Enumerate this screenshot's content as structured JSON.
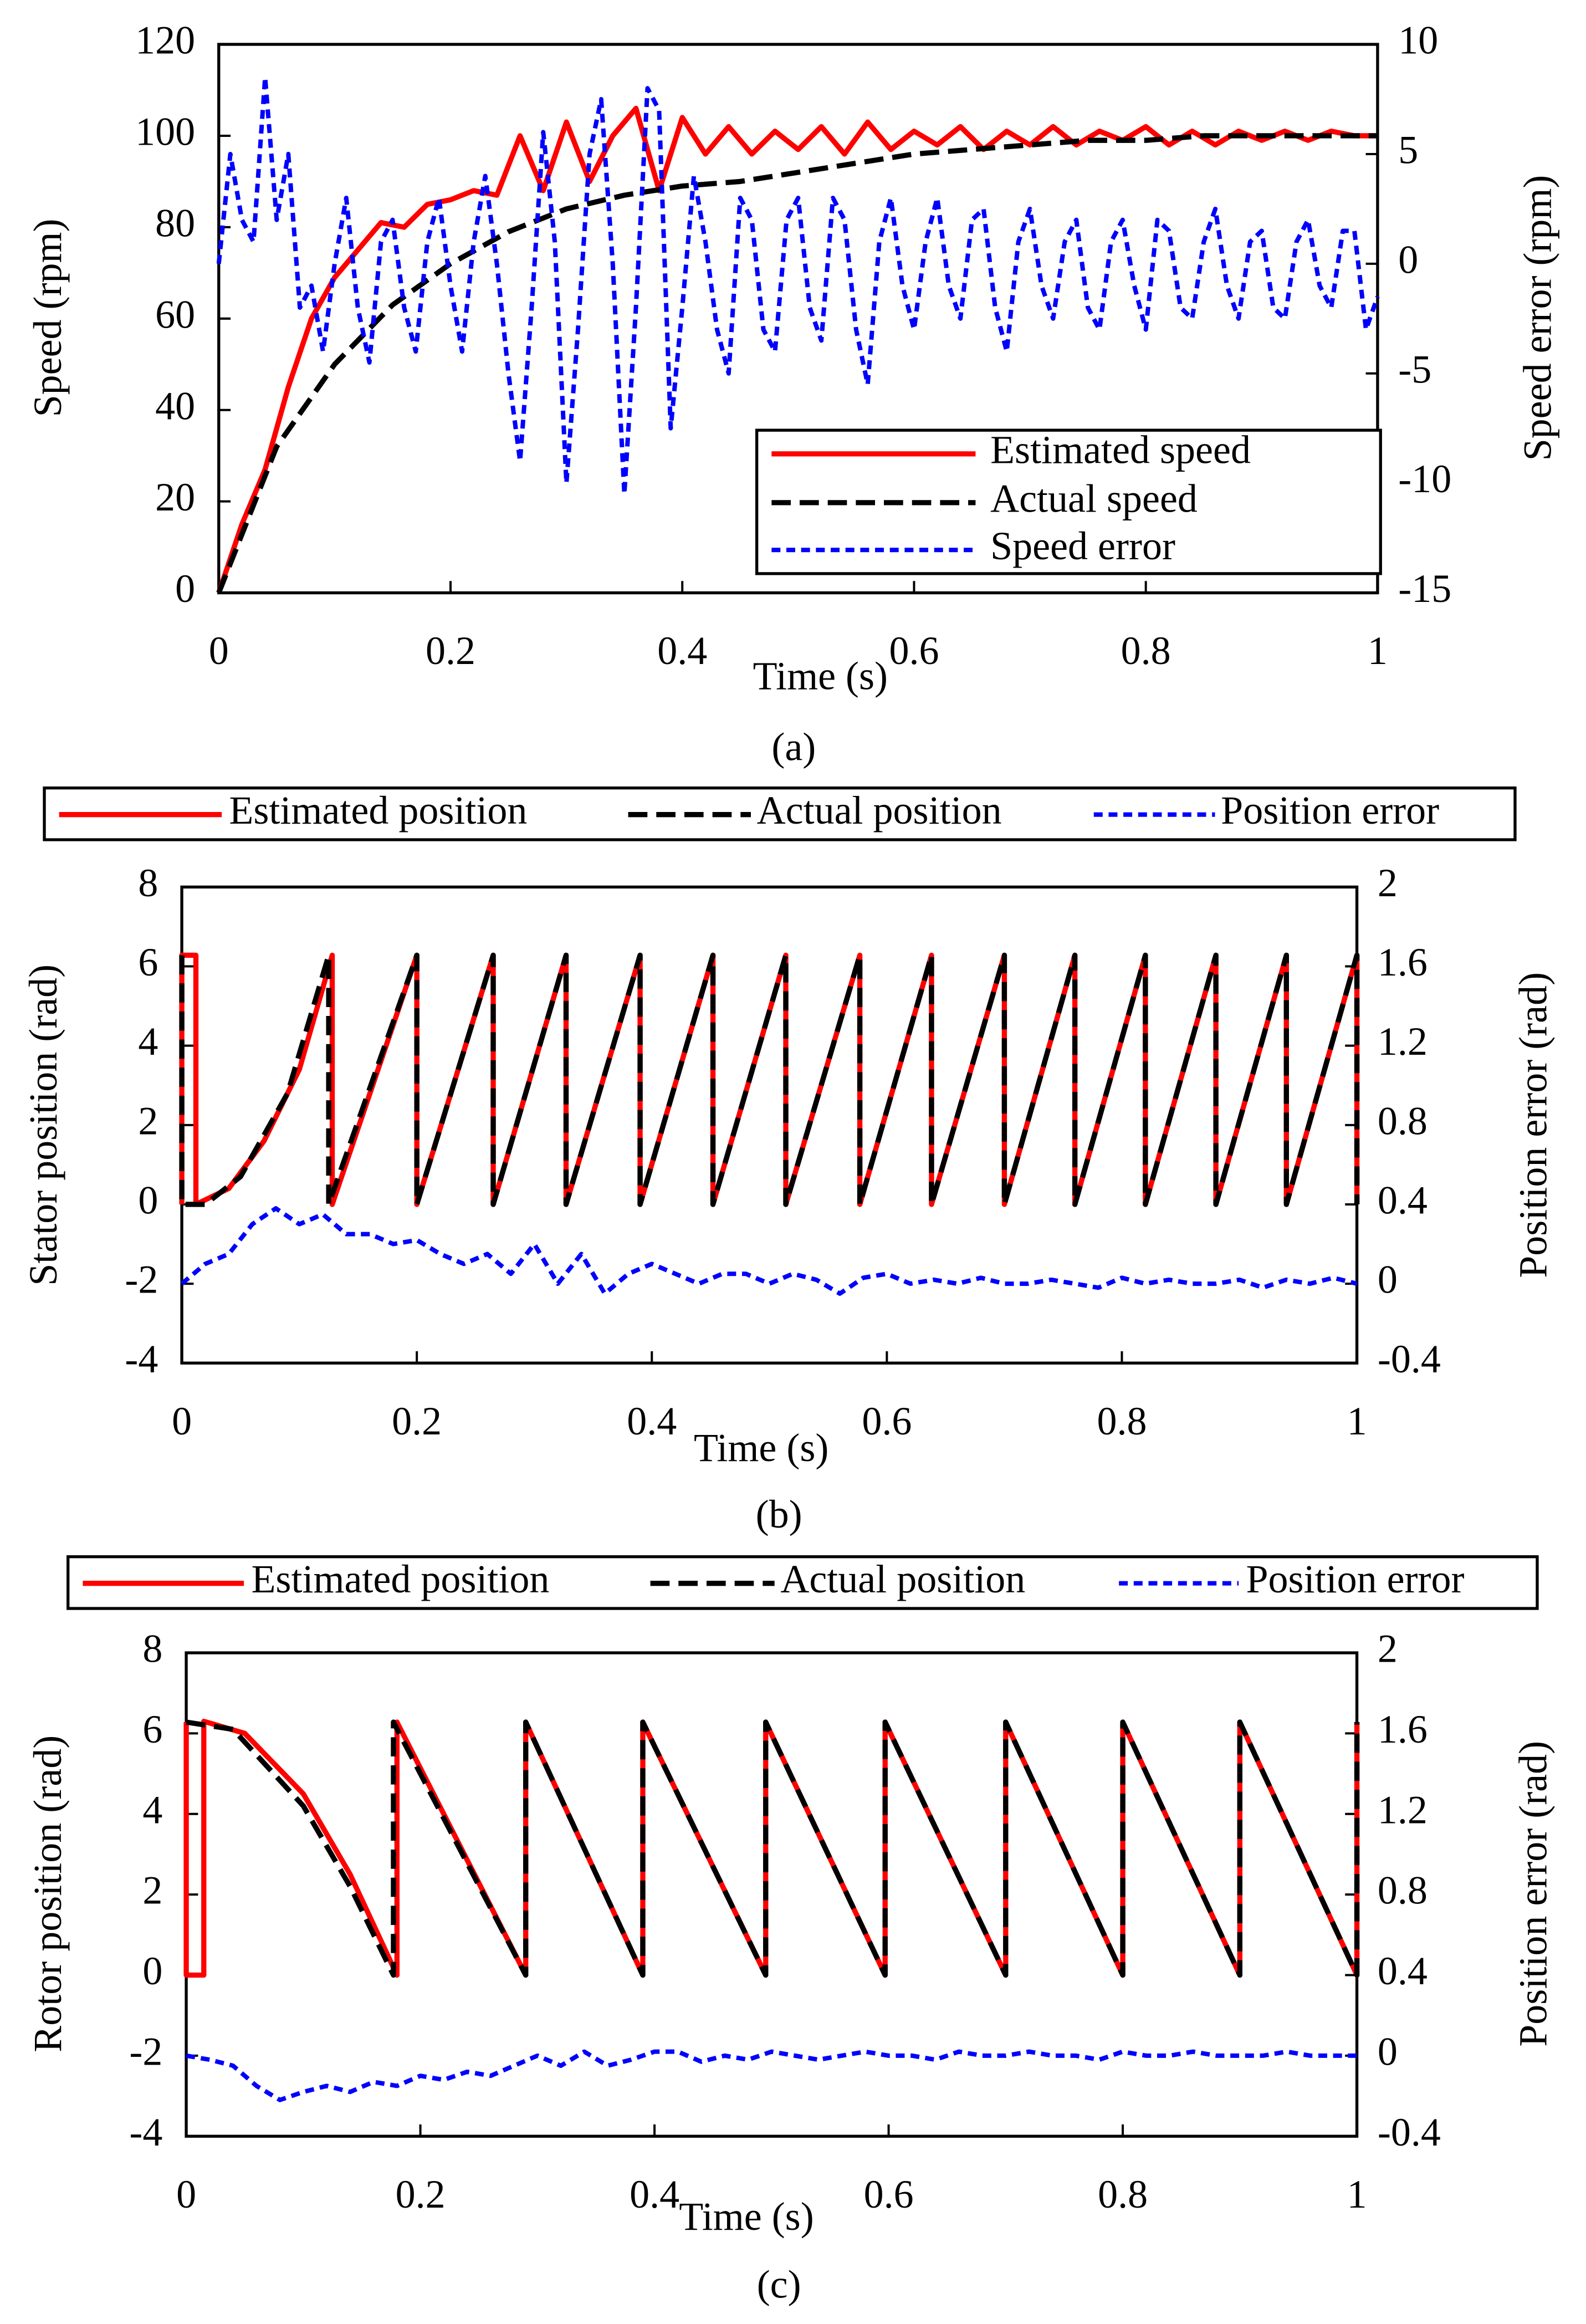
{
  "chart_data": [
    {
      "type": "line",
      "caption": "(a)",
      "xlabel": "Time (s)",
      "ylabel": "Speed  (rpm)",
      "y2label": "Speed error (rpm)",
      "xlim": [
        0,
        1
      ],
      "xticks": [
        0,
        0.2,
        0.4,
        0.6,
        0.8,
        1
      ],
      "ylim": [
        0,
        120
      ],
      "yticks": [
        0,
        20,
        40,
        60,
        80,
        100,
        120
      ],
      "y2lim": [
        -15,
        10
      ],
      "y2ticks": [
        -15,
        -10,
        -5,
        0,
        5,
        10
      ],
      "legend": "lower right",
      "series": [
        {
          "name": "Estimated speed",
          "color": "#ff0000",
          "linestyle": "solid",
          "x": [
            0,
            0.02,
            0.04,
            0.06,
            0.08,
            0.1,
            0.12,
            0.14,
            0.16,
            0.18,
            0.2,
            0.22,
            0.24,
            0.26,
            0.28,
            0.3,
            0.32,
            0.34,
            0.36,
            0.38,
            0.4,
            0.42,
            0.44,
            0.46,
            0.48,
            0.5,
            0.52,
            0.54,
            0.56,
            0.58,
            0.6,
            0.62,
            0.64,
            0.66,
            0.68,
            0.7,
            0.72,
            0.74,
            0.76,
            0.78,
            0.8,
            0.82,
            0.84,
            0.86,
            0.88,
            0.9,
            0.92,
            0.94,
            0.96,
            0.98,
            1
          ],
          "values": [
            0,
            15,
            27,
            45,
            60,
            69,
            75,
            81,
            80,
            85,
            86,
            88,
            87,
            100,
            88,
            103,
            90,
            100,
            106,
            88,
            104,
            96,
            102,
            96,
            101,
            97,
            102,
            96,
            103,
            97,
            101,
            98,
            102,
            97,
            101,
            98,
            102,
            98,
            101,
            99,
            102,
            98,
            101,
            98,
            101,
            99,
            101,
            99,
            101,
            100,
            100
          ]
        },
        {
          "name": "Actual speed",
          "color": "#000000",
          "linestyle": "dashed",
          "x": [
            0,
            0.05,
            0.1,
            0.15,
            0.2,
            0.25,
            0.3,
            0.35,
            0.4,
            0.45,
            0.5,
            0.55,
            0.6,
            0.65,
            0.7,
            0.75,
            0.8,
            0.85,
            0.9,
            0.95,
            1
          ],
          "values": [
            0,
            32,
            50,
            63,
            72,
            79,
            84,
            87,
            89,
            90,
            92,
            94,
            96,
            97,
            98,
            99,
            99,
            100,
            100,
            100,
            100
          ]
        },
        {
          "name": "Speed error",
          "color": "#0000ff",
          "linestyle": "dotted",
          "axis": "y2",
          "x": [
            0,
            0.01,
            0.02,
            0.03,
            0.04,
            0.05,
            0.06,
            0.07,
            0.08,
            0.09,
            0.1,
            0.11,
            0.12,
            0.13,
            0.14,
            0.15,
            0.16,
            0.17,
            0.18,
            0.19,
            0.2,
            0.21,
            0.22,
            0.23,
            0.24,
            0.25,
            0.26,
            0.27,
            0.28,
            0.29,
            0.3,
            0.31,
            0.32,
            0.33,
            0.34,
            0.35,
            0.36,
            0.37,
            0.38,
            0.39,
            0.4,
            0.41,
            0.42,
            0.43,
            0.44,
            0.45,
            0.46,
            0.47,
            0.48,
            0.49,
            0.5,
            0.51,
            0.52,
            0.53,
            0.54,
            0.55,
            0.56,
            0.57,
            0.58,
            0.59,
            0.6,
            0.61,
            0.62,
            0.63,
            0.64,
            0.65,
            0.66,
            0.67,
            0.68,
            0.69,
            0.7,
            0.71,
            0.72,
            0.73,
            0.74,
            0.75,
            0.76,
            0.77,
            0.78,
            0.79,
            0.8,
            0.81,
            0.82,
            0.83,
            0.84,
            0.85,
            0.86,
            0.87,
            0.88,
            0.89,
            0.9,
            0.91,
            0.92,
            0.93,
            0.94,
            0.95,
            0.96,
            0.97,
            0.98,
            0.99,
            1
          ],
          "values": [
            0,
            5,
            2,
            1,
            8.5,
            2,
            5,
            -2,
            -1,
            -4,
            0,
            3,
            -2,
            -4.5,
            1,
            2,
            -2,
            -4,
            1,
            3,
            -1,
            -4,
            1,
            4,
            0,
            -5,
            -9,
            -2,
            6,
            1,
            -10,
            -3,
            5,
            7.5,
            0,
            -10.5,
            -2,
            8,
            7,
            -7.5,
            -2,
            4,
            1,
            -3,
            -5,
            3,
            2,
            -3,
            -4,
            2,
            3,
            -2,
            -3.5,
            3,
            2,
            -3,
            -5.5,
            1,
            3,
            -1,
            -3,
            1,
            3,
            -1,
            -2.5,
            2,
            2.5,
            -2,
            -4,
            1,
            2.5,
            -1,
            -2.5,
            1,
            2,
            -2,
            -3,
            1,
            2,
            -1,
            -3,
            2,
            1.5,
            -2,
            -2.5,
            1,
            2.5,
            -1,
            -2.5,
            1,
            1.5,
            -2,
            -2.5,
            1,
            2,
            -1,
            -2,
            1.5,
            1.5,
            -3,
            -1.5
          ]
        }
      ]
    },
    {
      "type": "line",
      "caption": "(b)",
      "xlabel": "Time (s)",
      "ylabel": "Stator position (rad)",
      "y2label": "Position error (rad)",
      "xlim": [
        0,
        1
      ],
      "xticks": [
        0,
        0.2,
        0.4,
        0.6,
        0.8,
        1
      ],
      "ylim": [
        -4,
        8
      ],
      "yticks": [
        -4,
        -2,
        0,
        2,
        4,
        6,
        8
      ],
      "y2lim": [
        -0.4,
        2
      ],
      "y2ticks": [
        -0.4,
        0,
        0.4,
        0.8,
        1.2,
        1.6,
        2
      ],
      "legend": "top",
      "series": [
        {
          "name": "Estimated position",
          "color": "#ff0000",
          "linestyle": "solid",
          "x": [
            0,
            0,
            0.012,
            0.012,
            0.04,
            0.07,
            0.1,
            0.128,
            0.128,
            0.2,
            0.2,
            0.265,
            0.265,
            0.327,
            0.327,
            0.39,
            0.39,
            0.452,
            0.452,
            0.514,
            0.514,
            0.577,
            0.577,
            0.638,
            0.638,
            0.7,
            0.7,
            0.76,
            0.76,
            0.82,
            0.82,
            0.88,
            0.88,
            0.94,
            0.94,
            1,
            1
          ],
          "values": [
            0,
            6.28,
            6.28,
            0,
            0.4,
            1.6,
            3.4,
            6.28,
            0,
            6.28,
            0,
            6.28,
            0,
            6.28,
            0,
            6.28,
            0,
            6.28,
            0,
            6.28,
            0,
            6.28,
            0,
            6.28,
            0,
            6.28,
            0,
            6.28,
            0,
            6.28,
            0,
            6.28,
            0,
            6.28,
            0,
            6.28,
            0
          ]
        },
        {
          "name": "Actual position",
          "color": "#000000",
          "linestyle": "dashed",
          "x": [
            0,
            0,
            0.02,
            0.05,
            0.09,
            0.125,
            0.125,
            0.2,
            0.2,
            0.265,
            0.265,
            0.327,
            0.327,
            0.39,
            0.39,
            0.452,
            0.452,
            0.514,
            0.514,
            0.577,
            0.577,
            0.638,
            0.638,
            0.7,
            0.7,
            0.76,
            0.76,
            0.82,
            0.82,
            0.88,
            0.88,
            0.94,
            0.94,
            1,
            1
          ],
          "values": [
            6.28,
            0,
            0,
            0.7,
            2.8,
            6.28,
            0,
            6.28,
            0,
            6.28,
            0,
            6.28,
            0,
            6.28,
            0,
            6.28,
            0,
            6.28,
            0,
            6.28,
            0,
            6.28,
            0,
            6.28,
            0,
            6.28,
            0,
            6.28,
            0,
            6.28,
            0,
            6.28,
            0,
            6.28,
            0
          ]
        },
        {
          "name": "Position error",
          "color": "#0000ff",
          "linestyle": "dotted",
          "axis": "y2",
          "x": [
            0,
            0.02,
            0.04,
            0.06,
            0.08,
            0.1,
            0.12,
            0.14,
            0.16,
            0.18,
            0.2,
            0.22,
            0.24,
            0.26,
            0.28,
            0.3,
            0.32,
            0.34,
            0.36,
            0.38,
            0.4,
            0.42,
            0.44,
            0.46,
            0.48,
            0.5,
            0.52,
            0.54,
            0.56,
            0.58,
            0.6,
            0.62,
            0.64,
            0.66,
            0.68,
            0.7,
            0.72,
            0.74,
            0.76,
            0.78,
            0.8,
            0.82,
            0.84,
            0.86,
            0.88,
            0.9,
            0.92,
            0.94,
            0.96,
            0.98,
            1
          ],
          "values": [
            0,
            0.1,
            0.15,
            0.3,
            0.38,
            0.3,
            0.35,
            0.25,
            0.25,
            0.2,
            0.22,
            0.15,
            0.1,
            0.15,
            0.05,
            0.2,
            0,
            0.15,
            -0.05,
            0.05,
            0.1,
            0.05,
            0,
            0.05,
            0.05,
            0,
            0.05,
            0.02,
            -0.05,
            0.03,
            0.05,
            0,
            0.02,
            0,
            0.03,
            0,
            0,
            0.02,
            0,
            -0.02,
            0.03,
            0,
            0.02,
            0,
            0,
            0.02,
            -0.02,
            0.02,
            0,
            0.03,
            0
          ]
        }
      ]
    },
    {
      "type": "line",
      "caption": "(c)",
      "xlabel": "Time (s)",
      "ylabel": "Rotor position (rad)",
      "y2label": "Position error (rad)",
      "xlim": [
        0,
        1
      ],
      "xticks": [
        0,
        0.2,
        0.4,
        0.6,
        0.8,
        1
      ],
      "ylim": [
        -4,
        8
      ],
      "yticks": [
        -4,
        -2,
        0,
        2,
        4,
        6,
        8
      ],
      "y2lim": [
        -0.4,
        2
      ],
      "y2ticks": [
        -0.4,
        0,
        0.4,
        0.8,
        1.2,
        1.6,
        2
      ],
      "legend": "top",
      "series": [
        {
          "name": "Estimated position",
          "color": "#ff0000",
          "linestyle": "solid",
          "x": [
            0,
            0,
            0.015,
            0.015,
            0.05,
            0.1,
            0.14,
            0.18,
            0.18,
            0.29,
            0.29,
            0.39,
            0.39,
            0.495,
            0.495,
            0.597,
            0.597,
            0.7,
            0.7,
            0.8,
            0.8,
            0.9,
            0.9,
            1,
            1
          ],
          "values": [
            6.28,
            0,
            0,
            6.3,
            6.0,
            4.5,
            2.5,
            0,
            6.28,
            0,
            6.28,
            0,
            6.28,
            0,
            6.28,
            0,
            6.28,
            0,
            6.28,
            0,
            6.28,
            0,
            6.28,
            0,
            6.28
          ]
        },
        {
          "name": "Actual position",
          "color": "#000000",
          "linestyle": "dashed",
          "x": [
            0,
            0.04,
            0.1,
            0.14,
            0.177,
            0.177,
            0.29,
            0.29,
            0.39,
            0.39,
            0.495,
            0.495,
            0.597,
            0.597,
            0.7,
            0.7,
            0.8,
            0.8,
            0.9,
            0.9,
            1,
            1
          ],
          "values": [
            6.28,
            6.1,
            4.2,
            2.2,
            0,
            6.28,
            0,
            6.28,
            0,
            6.28,
            0,
            6.28,
            0,
            6.28,
            0,
            6.28,
            0,
            6.28,
            0,
            6.28,
            0,
            6.28
          ]
        },
        {
          "name": "Position error",
          "color": "#0000ff",
          "linestyle": "dotted",
          "axis": "y2",
          "x": [
            0,
            0.02,
            0.04,
            0.06,
            0.08,
            0.1,
            0.12,
            0.14,
            0.16,
            0.18,
            0.2,
            0.22,
            0.24,
            0.26,
            0.28,
            0.3,
            0.32,
            0.34,
            0.36,
            0.38,
            0.4,
            0.42,
            0.44,
            0.46,
            0.48,
            0.5,
            0.52,
            0.54,
            0.56,
            0.58,
            0.6,
            0.62,
            0.64,
            0.66,
            0.68,
            0.7,
            0.72,
            0.74,
            0.76,
            0.78,
            0.8,
            0.82,
            0.84,
            0.86,
            0.88,
            0.9,
            0.92,
            0.94,
            0.96,
            0.98,
            1
          ],
          "values": [
            0,
            -0.02,
            -0.05,
            -0.15,
            -0.22,
            -0.18,
            -0.15,
            -0.18,
            -0.13,
            -0.15,
            -0.1,
            -0.12,
            -0.08,
            -0.1,
            -0.05,
            0,
            -0.05,
            0.02,
            -0.05,
            -0.02,
            0.02,
            0.02,
            -0.03,
            0,
            -0.02,
            0.02,
            0,
            -0.02,
            0,
            0.02,
            0,
            0,
            -0.02,
            0.02,
            0,
            0,
            0.02,
            0,
            0,
            -0.02,
            0.02,
            0,
            0,
            0.02,
            0,
            0,
            0,
            0.02,
            0,
            0,
            0
          ]
        }
      ]
    }
  ]
}
